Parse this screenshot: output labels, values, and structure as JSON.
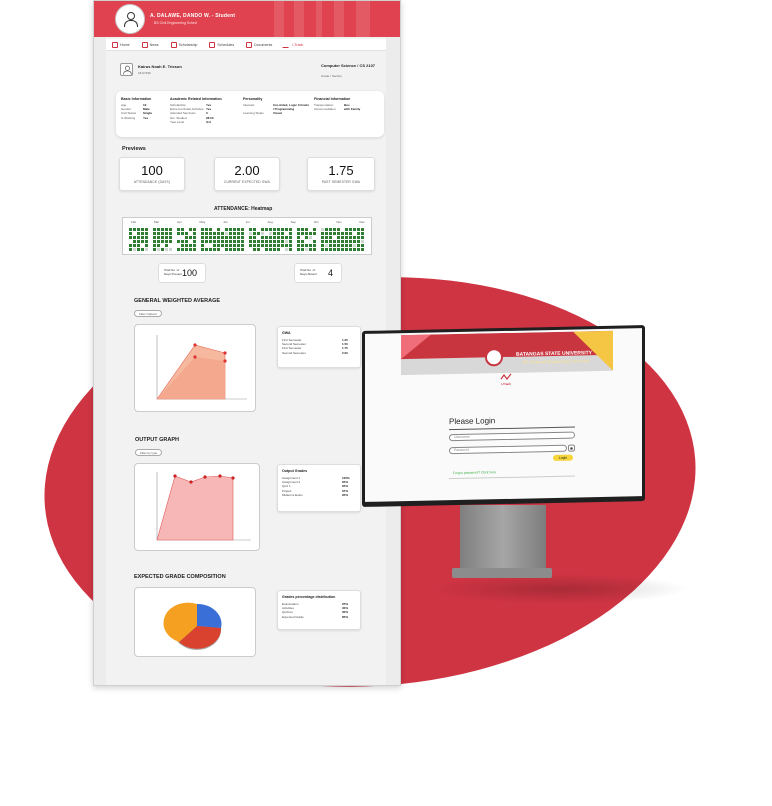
{
  "dashboard": {
    "banner": {
      "name": "A. DALAWE, DANDO W. - Student",
      "subtitle": "BS Civil Engineering Sched"
    },
    "nav": [
      {
        "label": "Home",
        "icon": "home-icon"
      },
      {
        "label": "News",
        "icon": "news-icon"
      },
      {
        "label": "Scholarship",
        "icon": "scholarship-icon"
      },
      {
        "label": "Schedules",
        "icon": "calendar-icon"
      },
      {
        "label": "Documents",
        "icon": "document-icon"
      },
      {
        "label": "i-Track",
        "icon": "itrack-icon"
      }
    ],
    "profile": {
      "name": "Kairus Noah E. Tricson",
      "id": "18-07496",
      "course": "Computer Science / CS 2107",
      "year": "Grade / Section"
    },
    "basic_info": {
      "title": "Basic Information",
      "rows": [
        [
          "Age",
          "19"
        ],
        [
          "Gender",
          "Male"
        ],
        [
          "Civil Status",
          "Single"
        ],
        [
          "Is Working",
          "Yes"
        ]
      ]
    },
    "academic_info": {
      "title": "Academic Related Information",
      "rows": [
        [
          "Scholarship",
          "Yes"
        ],
        [
          "Extra-Curricular Activities",
          "Yes"
        ],
        [
          "Attended Seminars",
          "3"
        ],
        [
          "Hrs. Studied",
          "28.00"
        ],
        [
          "Year Level",
          "3rd"
        ]
      ]
    },
    "personality": {
      "title": "Personality",
      "rows": [
        [
          "Interests",
          "Car-Aided, Logic Circuits / Programming"
        ],
        [
          "Learning Styles",
          "Visual"
        ]
      ]
    },
    "financial": {
      "title": "Financial Information",
      "rows": [
        [
          "Transportation",
          "Bus"
        ],
        [
          "Accommodation",
          "with Family"
        ]
      ]
    },
    "previews_title": "Previews",
    "stats": [
      {
        "value": "100",
        "label": "ATTENDANCE (DAYS)"
      },
      {
        "value": "2.00",
        "label": "CURRENT EXPECTED GWA"
      },
      {
        "value": "1.75",
        "label": "PAST SEMESTER GWA"
      }
    ],
    "heatmap": {
      "title": "ATTENDANCE: Heatmap",
      "months": [
        "Feb",
        "Mar",
        "Apr",
        "May",
        "Jun",
        "Jul",
        "Aug",
        "Sep",
        "Oct",
        "Nov",
        "Dec"
      ],
      "present_color": "#2e7d32",
      "absent_color": "#cfd8cf"
    },
    "present": {
      "label": "Total No. of Days Present",
      "value": "100"
    },
    "absent": {
      "label": "Total No. of Days Absent",
      "value": "4"
    },
    "gwa_section": {
      "title": "GENERAL WEIGHTED AVERAGE",
      "filter": "Filter Options"
    },
    "gwa_table": {
      "title": "GWA",
      "rows": [
        [
          "First Semester",
          "1.25"
        ],
        [
          "Second Semester",
          "1.50"
        ],
        [
          "First Semester",
          "1.75"
        ],
        [
          "Second Semester",
          "2.00"
        ]
      ]
    },
    "output_section": {
      "title": "OUTPUT GRAPH",
      "filter": "Filter by type"
    },
    "output_table": {
      "title": "Output Grades",
      "rows": [
        [
          "Assignment 1",
          "100%"
        ],
        [
          "Assignment 2",
          "95%"
        ],
        [
          "Quiz 1",
          "95%"
        ],
        [
          "Project",
          "97%"
        ],
        [
          "Midterms Exam",
          "95%"
        ]
      ]
    },
    "composition_section": {
      "title": "EXPECTED GRADE COMPOSITION"
    },
    "composition_table": {
      "title": "Grades percentage distribution",
      "rows": [
        [
          "Examination",
          "25%"
        ],
        [
          "Activities",
          "30%"
        ],
        [
          "Quizzes",
          "30%"
        ],
        [
          "Expected Grade",
          "85%"
        ]
      ]
    },
    "accent": "#cf3443"
  },
  "login": {
    "university": "BATANGAS STATE UNIVERSITY",
    "tagline": "The National Engineering University",
    "logo_text": "i-Track",
    "title": "Please Login",
    "username_placeholder": "Username",
    "password_placeholder": "Password",
    "login_button": "Login",
    "forgot": "Forgot password? Click here"
  }
}
